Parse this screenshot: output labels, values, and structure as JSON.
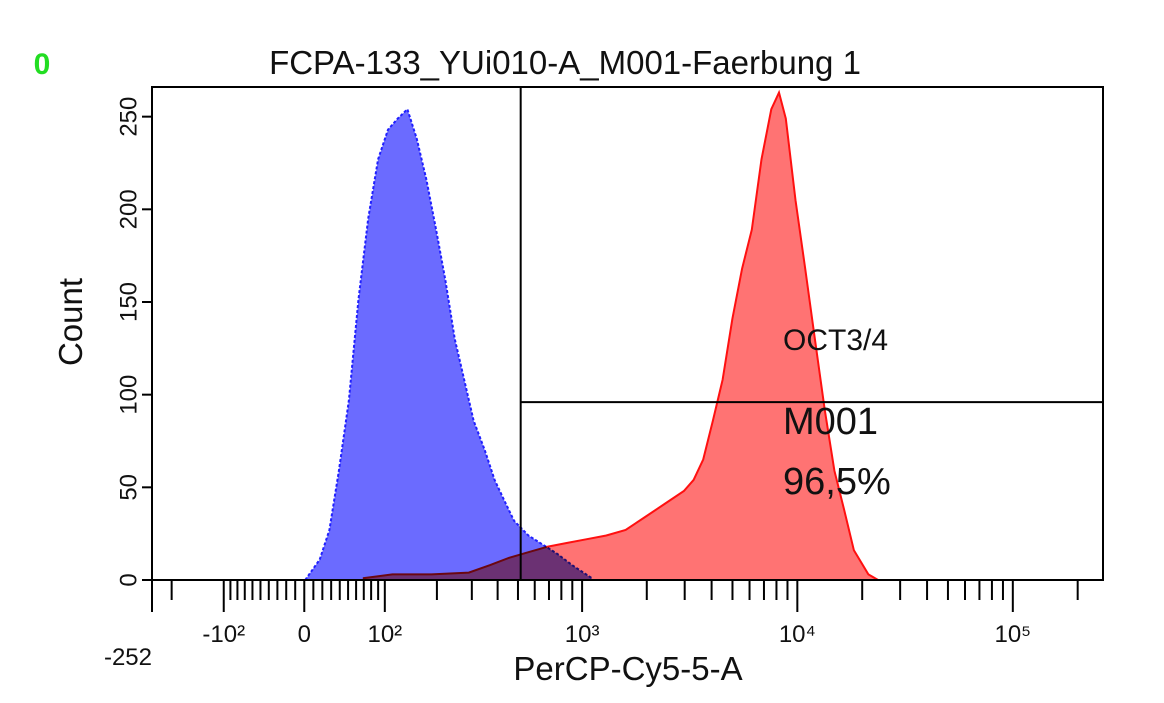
{
  "chart_data": {
    "type": "histogram-overlay",
    "corner_label": "0",
    "title": "FCPA-133_YUi010-A_M001-Faerbung 1",
    "xlabel": "PerCP-Cy5-5-A",
    "ylabel": "Count",
    "xscale": "biexponential",
    "xlim": [
      -252,
      262144
    ],
    "xticks": [
      -252,
      {
        "value": -100,
        "label": "-10²"
      },
      0,
      {
        "value": 100,
        "label": "10²"
      },
      {
        "value": 1000,
        "label": "10³"
      },
      {
        "value": 10000,
        "label": "10⁴"
      },
      {
        "value": 100000,
        "label": "10⁵"
      }
    ],
    "xminor_ticks": [
      -200,
      -90,
      -80,
      -70,
      -60,
      -50,
      -40,
      -30,
      -20,
      -10,
      10,
      20,
      30,
      40,
      50,
      60,
      70,
      80,
      90,
      200,
      300,
      400,
      500,
      600,
      700,
      800,
      900,
      2000,
      3000,
      4000,
      5000,
      6000,
      7000,
      8000,
      9000,
      20000,
      30000,
      40000,
      50000,
      60000,
      70000,
      80000,
      90000,
      200000
    ],
    "ylim": [
      0,
      266
    ],
    "yticks": [
      0,
      50,
      100,
      150,
      200,
      250
    ],
    "series": [
      {
        "color": "#6b6bff",
        "edge_color": "#2020ff",
        "x": [
          1,
          17,
          28,
          39,
          51,
          63,
          76,
          90,
          105,
          121,
          138,
          156,
          176,
          198,
          221,
          247,
          275,
          306,
          347,
          387,
          430,
          479,
          560,
          656,
          768,
          899,
          1108
        ],
        "values": [
          0,
          11,
          27,
          59,
          97,
          151,
          195,
          227,
          243,
          249,
          254,
          238,
          216,
          189,
          162,
          130,
          108,
          86,
          70,
          54,
          43,
          32,
          24,
          19,
          14,
          8,
          1
        ]
      },
      {
        "color": "#ff6b6b",
        "edge_color": "#ff1010",
        "x": [
          70,
          112,
          187,
          290,
          367,
          454,
          560,
          693,
          853,
          1052,
          1296,
          1595,
          1964,
          2418,
          2974,
          3301,
          3657,
          4058,
          4501,
          4995,
          5541,
          6149,
          6819,
          7570,
          8219,
          8837,
          9806,
          10877,
          12061,
          13390,
          14853,
          16480,
          18293,
          21362,
          23711
        ],
        "values": [
          1,
          3,
          3,
          4,
          8,
          12,
          15,
          18,
          20,
          22,
          24,
          27,
          34,
          41,
          48,
          54,
          65,
          86,
          108,
          141,
          168,
          189,
          227,
          254,
          263,
          249,
          205,
          168,
          130,
          92,
          59,
          38,
          16,
          3,
          0
        ]
      }
    ],
    "gate": {
      "x": 515,
      "y": 96,
      "label": "OCT3/4",
      "name": "M001",
      "percent": "96,5%"
    }
  }
}
